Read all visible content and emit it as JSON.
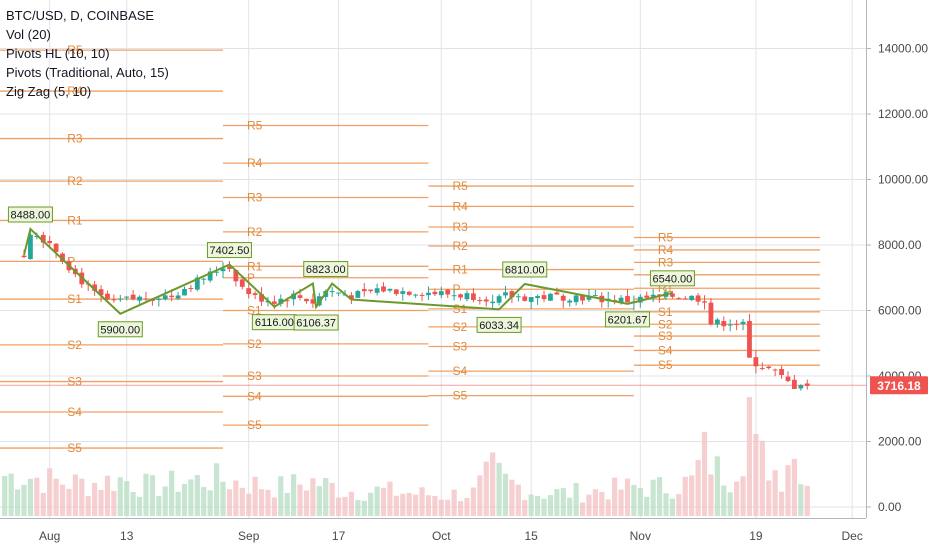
{
  "legend": {
    "symbol": "BTC/USD, D, COINBASE",
    "vol": "Vol (20)",
    "pivots_hl": "Pivots HL (10, 10)",
    "pivots": "Pivots (Traditional, Auto, 15)",
    "zigzag": "Zig Zag (5, 10)"
  },
  "colors": {
    "up": "#26a69a",
    "down": "#ef5350",
    "pivot": "#f0a065",
    "pivot_text": "#e08a3c",
    "zigzag": "#6b9a2a",
    "label_border": "#6b9a2a",
    "label_bg": "#eef6da",
    "price_tag": "#ef5350",
    "grid": "#e1e3eb",
    "axis_text": "#4a4a4a"
  },
  "chart_data": {
    "type": "candlestick",
    "symbol": "BTC/USD",
    "ylim": [
      0,
      15500
    ],
    "y_ticks": [
      "0.00",
      "2000.00",
      "4000.00",
      "6000.00",
      "8000.00",
      "10000.00",
      "12000.00",
      "14000.00"
    ],
    "y_tick_values": [
      0,
      2000,
      4000,
      6000,
      8000,
      10000,
      12000,
      14000
    ],
    "x_ticks": [
      "Aug",
      "13",
      "Sep",
      "17",
      "Oct",
      "15",
      "Nov",
      "19",
      "Dec"
    ],
    "x_tick_days": [
      4,
      16,
      35,
      49,
      65,
      79,
      96,
      114,
      129
    ],
    "current_price": "3716.18",
    "current_price_value": 3716.18,
    "zigzag": [
      {
        "day": 0,
        "value": 7700,
        "label": ""
      },
      {
        "day": 1,
        "value": 8488,
        "label": "8488.00"
      },
      {
        "day": 15,
        "value": 5900,
        "label": "5900.00"
      },
      {
        "day": 32,
        "value": 7402.5,
        "label": "7402.50"
      },
      {
        "day": 39,
        "value": 6116,
        "label": "6116.00"
      },
      {
        "day": 45,
        "value": 6823,
        "label": "6823.00"
      },
      {
        "day": 45.5,
        "value": 6106.37,
        "label": "6106.37"
      },
      {
        "day": 48,
        "value": 6823,
        "label": ""
      },
      {
        "day": 51,
        "value": 6335,
        "label": ""
      },
      {
        "day": 74,
        "value": 6033.34,
        "label": "6033.34"
      },
      {
        "day": 78,
        "value": 6810,
        "label": "6810.00"
      },
      {
        "day": 94,
        "value": 6201.67,
        "label": "6201.67"
      },
      {
        "day": 101,
        "value": 6540,
        "label": "6540.00"
      }
    ],
    "zigzag_labels": [
      {
        "label": "8488.00",
        "day": 1,
        "value": 8488,
        "pos": "above"
      },
      {
        "label": "5900.00",
        "day": 15,
        "value": 5900,
        "pos": "below"
      },
      {
        "label": "7402.50",
        "day": 32,
        "value": 7402.5,
        "pos": "above"
      },
      {
        "label": "6116.00",
        "day": 39,
        "value": 6116,
        "pos": "below"
      },
      {
        "label": "6823.00",
        "day": 47,
        "value": 6823,
        "pos": "above"
      },
      {
        "label": "6106.37",
        "day": 45.5,
        "value": 6106.37,
        "pos": "below"
      },
      {
        "label": "6033.34",
        "day": 74,
        "value": 6033.34,
        "pos": "below"
      },
      {
        "label": "6810.00",
        "day": 78,
        "value": 6810,
        "pos": "above"
      },
      {
        "label": "6201.67",
        "day": 94,
        "value": 6201.67,
        "pos": "below"
      },
      {
        "label": "6540.00",
        "day": 101,
        "value": 6540,
        "pos": "above"
      }
    ],
    "pivot_sets": [
      {
        "start_day": -6,
        "end_day": 31,
        "label_day": 3,
        "levels": [
          {
            "name": "R5",
            "value": 13950
          },
          {
            "name": "R4",
            "value": 12700
          },
          {
            "name": "R3",
            "value": 11250
          },
          {
            "name": "R2",
            "value": 9950
          },
          {
            "name": "R1",
            "value": 8750
          },
          {
            "name": "P",
            "value": 7500
          },
          {
            "name": "S1",
            "value": 6350
          },
          {
            "name": "S2",
            "value": 4950
          },
          {
            "name": "S3",
            "value": 3830
          },
          {
            "name": "S4",
            "value": 2900
          },
          {
            "name": "S5",
            "value": 1800
          }
        ]
      },
      {
        "start_day": 31,
        "end_day": 63,
        "label_day": 31,
        "levels": [
          {
            "name": "R5",
            "value": 11650
          },
          {
            "name": "R4",
            "value": 10500
          },
          {
            "name": "R3",
            "value": 9450
          },
          {
            "name": "R2",
            "value": 8400
          },
          {
            "name": "R1",
            "value": 7350
          },
          {
            "name": "P",
            "value": 7000
          },
          {
            "name": "S1",
            "value": 6000
          },
          {
            "name": "S2",
            "value": 4980
          },
          {
            "name": "S3",
            "value": 4000
          },
          {
            "name": "S4",
            "value": 3380
          },
          {
            "name": "S5",
            "value": 2500
          }
        ]
      },
      {
        "start_day": 63,
        "end_day": 95,
        "label_day": 63,
        "levels": [
          {
            "name": "R5",
            "value": 9800
          },
          {
            "name": "R4",
            "value": 9180
          },
          {
            "name": "R3",
            "value": 8550
          },
          {
            "name": "R2",
            "value": 7970
          },
          {
            "name": "R1",
            "value": 7250
          },
          {
            "name": "P",
            "value": 6650
          },
          {
            "name": "S1",
            "value": 6050
          },
          {
            "name": "S2",
            "value": 5500
          },
          {
            "name": "S3",
            "value": 4900
          },
          {
            "name": "S4",
            "value": 4150
          },
          {
            "name": "S5",
            "value": 3400
          }
        ]
      },
      {
        "start_day": 95,
        "end_day": 124,
        "label_day": 95,
        "levels": [
          {
            "name": "R5",
            "value": 8230
          },
          {
            "name": "R4",
            "value": 7850
          },
          {
            "name": "R3",
            "value": 7470
          },
          {
            "name": "R2",
            "value": 7090
          },
          {
            "name": "R1",
            "value": 6680
          },
          {
            "name": "P",
            "value": 6350
          },
          {
            "name": "S1",
            "value": 5960
          },
          {
            "name": "S2",
            "value": 5580
          },
          {
            "name": "S3",
            "value": 5220
          },
          {
            "name": "S4",
            "value": 4780
          },
          {
            "name": "S5",
            "value": 4330
          }
        ]
      }
    ],
    "price_path": [
      [
        0,
        7700
      ],
      [
        1,
        8400
      ],
      [
        4,
        8100
      ],
      [
        6,
        7600
      ],
      [
        8,
        7100
      ],
      [
        11,
        6500
      ],
      [
        14,
        6200
      ],
      [
        15,
        6300
      ],
      [
        19,
        6400
      ],
      [
        23,
        6450
      ],
      [
        26,
        6800
      ],
      [
        29,
        7100
      ],
      [
        31,
        7350
      ],
      [
        32,
        7300
      ],
      [
        34,
        6700
      ],
      [
        36,
        6400
      ],
      [
        39,
        6300
      ],
      [
        42,
        6450
      ],
      [
        44,
        6350
      ],
      [
        45,
        6250
      ],
      [
        47,
        6600
      ],
      [
        49,
        6550
      ],
      [
        51,
        6450
      ],
      [
        53,
        6500
      ],
      [
        55,
        6650
      ],
      [
        58,
        6600
      ],
      [
        62,
        6570
      ],
      [
        66,
        6500
      ],
      [
        70,
        6450
      ],
      [
        72,
        6400
      ],
      [
        73,
        6200
      ],
      [
        75,
        6450
      ],
      [
        78,
        6400
      ],
      [
        82,
        6420
      ],
      [
        86,
        6430
      ],
      [
        90,
        6350
      ],
      [
        94,
        6300
      ],
      [
        98,
        6400
      ],
      [
        101,
        6450
      ],
      [
        104,
        6400
      ],
      [
        106,
        6350
      ],
      [
        107,
        5600
      ],
      [
        110,
        5650
      ],
      [
        112,
        5550
      ],
      [
        113,
        4500
      ],
      [
        115,
        4300
      ],
      [
        117,
        4100
      ],
      [
        119,
        3800
      ],
      [
        120,
        3700
      ],
      [
        121,
        3800
      ],
      [
        122,
        3716
      ]
    ],
    "volume_path": [
      [
        0,
        0.35
      ],
      [
        5,
        0.3
      ],
      [
        10,
        0.28
      ],
      [
        15,
        0.32
      ],
      [
        20,
        0.25
      ],
      [
        25,
        0.3
      ],
      [
        30,
        0.32
      ],
      [
        35,
        0.28
      ],
      [
        40,
        0.25
      ],
      [
        45,
        0.3
      ],
      [
        50,
        0.22
      ],
      [
        55,
        0.22
      ],
      [
        60,
        0.2
      ],
      [
        65,
        0.18
      ],
      [
        70,
        0.2
      ],
      [
        73,
        0.4
      ],
      [
        75,
        0.3
      ],
      [
        80,
        0.2
      ],
      [
        85,
        0.2
      ],
      [
        90,
        0.22
      ],
      [
        95,
        0.25
      ],
      [
        100,
        0.25
      ],
      [
        104,
        0.3
      ],
      [
        106,
        0.55
      ],
      [
        108,
        0.4
      ],
      [
        110,
        0.35
      ],
      [
        112,
        0.6
      ],
      [
        113,
        1.0
      ],
      [
        114,
        0.55
      ],
      [
        116,
        0.45
      ],
      [
        118,
        0.35
      ],
      [
        119,
        0.55
      ],
      [
        120,
        0.5
      ],
      [
        121,
        0.45
      ],
      [
        122,
        0.3
      ]
    ]
  }
}
